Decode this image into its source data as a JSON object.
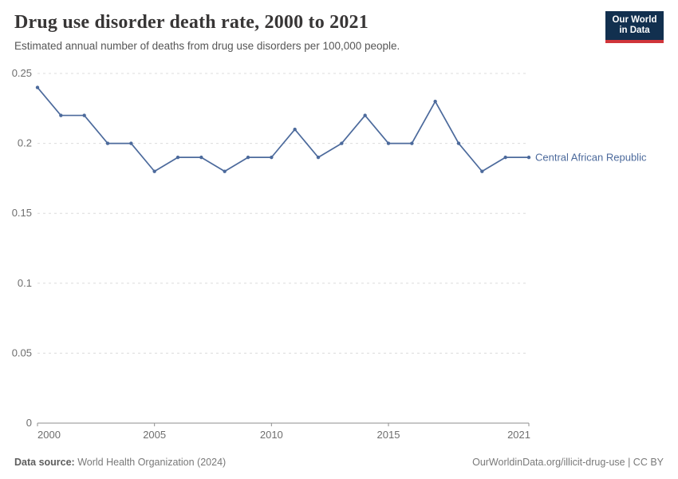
{
  "header": {
    "title": "Drug use disorder death rate, 2000 to 2021",
    "subtitle": "Estimated annual number of deaths from drug use disorders per 100,000 people.",
    "logo": {
      "line1": "Our World",
      "line2": "in Data",
      "bg_color": "#12304f",
      "accent_color": "#d0353a"
    }
  },
  "chart_data": {
    "type": "line",
    "title": "Drug use disorder death rate, 2000 to 2021",
    "xlabel": "",
    "ylabel": "Estimated annual deaths from drug use disorders per 100,000 people",
    "x": [
      2000,
      2001,
      2002,
      2003,
      2004,
      2005,
      2006,
      2007,
      2008,
      2009,
      2010,
      2011,
      2012,
      2013,
      2014,
      2015,
      2016,
      2017,
      2018,
      2019,
      2020,
      2021
    ],
    "series": [
      {
        "name": "Central African Republic",
        "color": "#4c6a9c",
        "values": [
          0.24,
          0.22,
          0.22,
          0.2,
          0.2,
          0.18,
          0.19,
          0.19,
          0.18,
          0.19,
          0.19,
          0.21,
          0.19,
          0.2,
          0.22,
          0.2,
          0.2,
          0.23,
          0.2,
          0.18,
          0.19,
          0.19
        ]
      }
    ],
    "xlim": [
      2000,
      2021
    ],
    "ylim": [
      0,
      0.25
    ],
    "yticks": [
      {
        "v": 0,
        "label": "0"
      },
      {
        "v": 0.05,
        "label": "0.05"
      },
      {
        "v": 0.1,
        "label": "0.1"
      },
      {
        "v": 0.15,
        "label": "0.15"
      },
      {
        "v": 0.2,
        "label": "0.2"
      },
      {
        "v": 0.25,
        "label": "0.25"
      }
    ],
    "xticks": [
      {
        "v": 2000,
        "label": "2000"
      },
      {
        "v": 2005,
        "label": "2005"
      },
      {
        "v": 2010,
        "label": "2010"
      },
      {
        "v": 2015,
        "label": "2015"
      },
      {
        "v": 2021,
        "label": "2021"
      }
    ],
    "grid": "horizontal-dashed",
    "legend_position": "end-of-line-label",
    "grid_color": "#dcdcdc",
    "axis_color": "#8f8f8f"
  },
  "footer": {
    "source_label": "Data source:",
    "source_text": "World Health Organization (2024)",
    "credit": "OurWorldinData.org/illicit-drug-use | CC BY"
  }
}
